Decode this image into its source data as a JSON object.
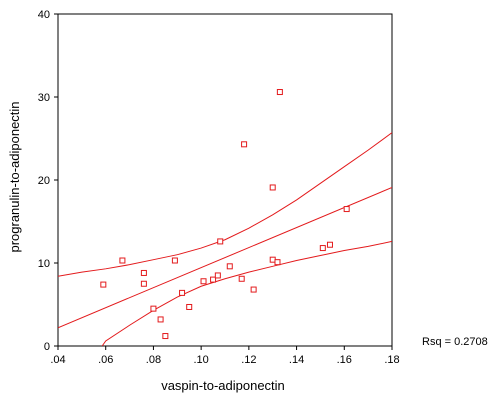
{
  "chart_data": {
    "type": "scatter",
    "xlabel": "vaspin-to-adiponectin",
    "ylabel": "progranulin-to-adiponectin",
    "xlim": [
      0.04,
      0.18
    ],
    "ylim": [
      0,
      40
    ],
    "xticks": [
      ".04",
      ".06",
      ".08",
      ".10",
      ".12",
      ".14",
      ".16",
      ".18"
    ],
    "yticks": [
      "0",
      "10",
      "20",
      "30",
      "40"
    ],
    "grid": false,
    "points": [
      {
        "x": 0.059,
        "y": 7.4
      },
      {
        "x": 0.067,
        "y": 10.3
      },
      {
        "x": 0.076,
        "y": 8.8
      },
      {
        "x": 0.076,
        "y": 7.5
      },
      {
        "x": 0.08,
        "y": 4.5
      },
      {
        "x": 0.083,
        "y": 3.2
      },
      {
        "x": 0.085,
        "y": 1.2
      },
      {
        "x": 0.089,
        "y": 10.3
      },
      {
        "x": 0.092,
        "y": 6.4
      },
      {
        "x": 0.095,
        "y": 4.7
      },
      {
        "x": 0.101,
        "y": 7.8
      },
      {
        "x": 0.105,
        "y": 8.0
      },
      {
        "x": 0.107,
        "y": 8.5
      },
      {
        "x": 0.108,
        "y": 12.6
      },
      {
        "x": 0.112,
        "y": 9.6
      },
      {
        "x": 0.117,
        "y": 8.1
      },
      {
        "x": 0.118,
        "y": 24.3
      },
      {
        "x": 0.122,
        "y": 6.8
      },
      {
        "x": 0.13,
        "y": 10.4
      },
      {
        "x": 0.13,
        "y": 19.1
      },
      {
        "x": 0.132,
        "y": 10.1
      },
      {
        "x": 0.133,
        "y": 30.6
      },
      {
        "x": 0.151,
        "y": 11.8
      },
      {
        "x": 0.154,
        "y": 12.2
      },
      {
        "x": 0.161,
        "y": 16.5
      }
    ],
    "fit_line": {
      "x": [
        0.04,
        0.18
      ],
      "y": [
        2.2,
        19.1
      ]
    },
    "ci_upper": {
      "x": [
        0.04,
        0.05,
        0.06,
        0.07,
        0.08,
        0.09,
        0.1,
        0.11,
        0.12,
        0.13,
        0.14,
        0.15,
        0.16,
        0.17,
        0.18
      ],
      "y": [
        8.4,
        8.9,
        9.3,
        9.8,
        10.4,
        11.0,
        11.8,
        12.8,
        14.2,
        15.8,
        17.6,
        19.6,
        21.6,
        23.6,
        25.7
      ]
    },
    "ci_lower": {
      "x": [
        0.0585,
        0.06,
        0.07,
        0.08,
        0.09,
        0.1,
        0.11,
        0.12,
        0.13,
        0.14,
        0.15,
        0.16,
        0.17,
        0.18
      ],
      "y": [
        0.0,
        0.6,
        2.5,
        4.3,
        5.9,
        7.2,
        8.1,
        8.9,
        9.6,
        10.3,
        10.9,
        11.5,
        12.0,
        12.6
      ]
    },
    "annotation": "Rsq = 0.2708",
    "color": "#e31a1c"
  }
}
